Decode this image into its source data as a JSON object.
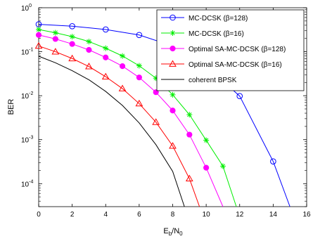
{
  "chart_data": {
    "type": "line",
    "xscale": "linear",
    "yscale": "log",
    "xlim": [
      0,
      16
    ],
    "ylim": [
      3e-05,
      1
    ],
    "grid": false,
    "legend_position": "top-right",
    "xlabel": {
      "main": "E",
      "sub1": "b",
      "mid": "/N",
      "sub2": "0"
    },
    "ylabel": "BER",
    "x_ticks": [
      "0",
      "2",
      "4",
      "6",
      "8",
      "10",
      "12",
      "14",
      "16"
    ],
    "y_ticks": [
      {
        "value": 1,
        "base": "10",
        "exp": "0"
      },
      {
        "value": 0.1,
        "base": "10",
        "exp": "-1"
      },
      {
        "value": 0.01,
        "base": "10",
        "exp": "-2"
      },
      {
        "value": 0.001,
        "base": "10",
        "exp": "-3"
      },
      {
        "value": 0.0001,
        "base": "10",
        "exp": "-4"
      }
    ],
    "series": [
      {
        "name": "MC-DCSK (β=128)",
        "color": "#0000ff",
        "marker": "circle",
        "x": [
          0,
          2,
          4,
          6,
          8,
          10,
          12,
          14,
          15
        ],
        "y": [
          0.42,
          0.38,
          0.32,
          0.24,
          0.135,
          0.047,
          0.0098,
          0.00032,
          3e-05
        ],
        "marker_x": [
          0,
          2,
          4,
          6,
          8,
          10,
          12,
          14
        ]
      },
      {
        "name": "MC-DCSK (β=16)",
        "color": "#00ee00",
        "marker": "star",
        "x": [
          0,
          1,
          2,
          3,
          4,
          5,
          6,
          7,
          8,
          9,
          10,
          11,
          11.8
        ],
        "y": [
          0.32,
          0.27,
          0.22,
          0.17,
          0.12,
          0.08,
          0.048,
          0.025,
          0.0105,
          0.0037,
          0.00097,
          0.00025,
          3e-05
        ]
      },
      {
        "name": "Optimal SA-MC-DCSK (β=128)",
        "color": "#ff00ff",
        "marker": "filled-circle",
        "x": [
          0,
          1,
          2,
          3,
          4,
          5,
          6,
          7,
          8,
          9,
          10,
          11
        ],
        "y": [
          0.24,
          0.195,
          0.15,
          0.11,
          0.074,
          0.047,
          0.026,
          0.012,
          0.0046,
          0.0013,
          0.00023,
          3e-05
        ]
      },
      {
        "name": "Optimal SA-MC-DCSK (β=16)",
        "color": "#ff0000",
        "marker": "triangle",
        "x": [
          0,
          1,
          2,
          3,
          4,
          5,
          6,
          7,
          8,
          9,
          9.6
        ],
        "y": [
          0.135,
          0.1,
          0.07,
          0.046,
          0.027,
          0.0145,
          0.0066,
          0.0025,
          0.00072,
          0.00013,
          3e-05
        ]
      },
      {
        "name": "coherent BPSK",
        "color": "#000000",
        "marker": "none",
        "x": [
          0,
          1,
          2,
          3,
          4,
          5,
          6,
          7,
          8,
          8.7
        ],
        "y": [
          0.079,
          0.056,
          0.037,
          0.023,
          0.0125,
          0.006,
          0.0024,
          0.00077,
          0.00019,
          3e-05
        ]
      }
    ]
  }
}
